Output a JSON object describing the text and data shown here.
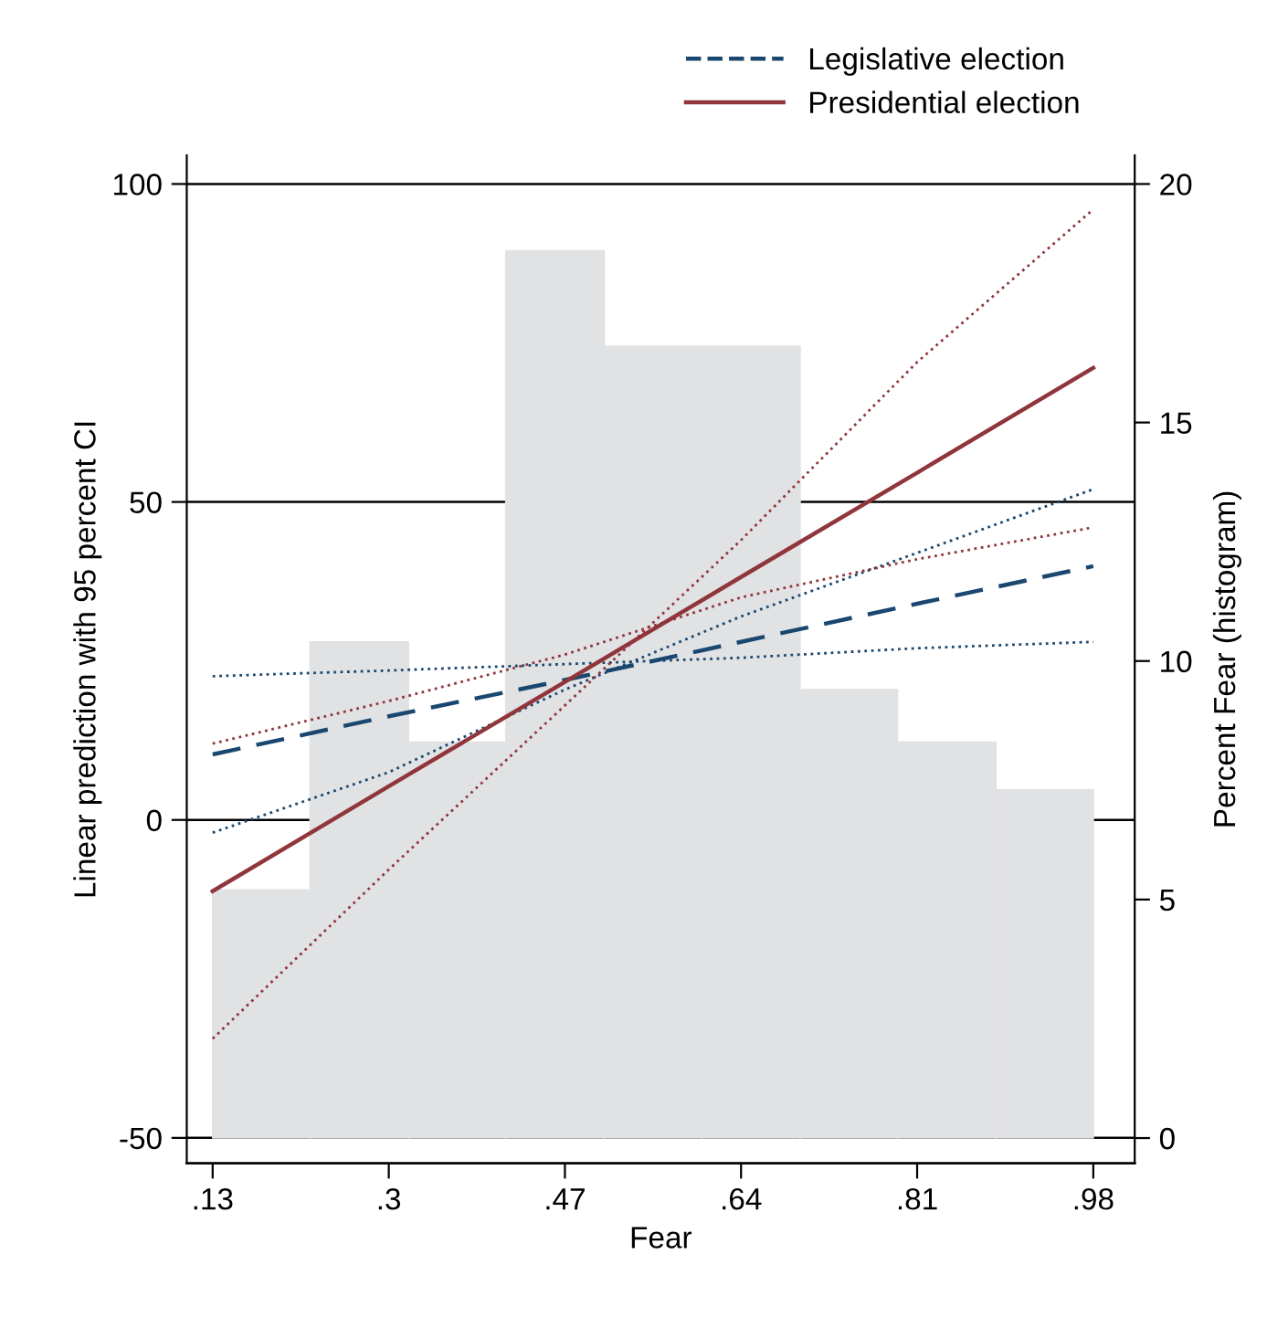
{
  "chart_data": {
    "type": "line",
    "xlabel": "Fear",
    "ylabel": "Linear prediction with 95 percent CI",
    "y2label": "Percent Fear (histogram)",
    "xlim": [
      0.105,
      1.02
    ],
    "xticks": [
      {
        "value": 0.13,
        "label": ".13"
      },
      {
        "value": 0.3,
        "label": ".3"
      },
      {
        "value": 0.47,
        "label": ".47"
      },
      {
        "value": 0.64,
        "label": ".64"
      },
      {
        "value": 0.81,
        "label": ".81"
      },
      {
        "value": 0.98,
        "label": ".98"
      }
    ],
    "ylim": [
      -54,
      104.5
    ],
    "yticks": [
      -50,
      0,
      50,
      100
    ],
    "y2lim": [
      -0.53,
      20.6
    ],
    "y2ticks": [
      0,
      5,
      10,
      15,
      20
    ],
    "grid": "y",
    "legend": "top right",
    "series": [
      {
        "type": "histogram",
        "axis": "y2",
        "color": "#e1e2e4",
        "bins": [
          0.13,
          0.224,
          0.319,
          0.413,
          0.508,
          0.602,
          0.697,
          0.791,
          0.886,
          0.98
        ],
        "values": [
          5.2,
          10.4,
          8.3,
          18.6,
          16.6,
          16.6,
          9.4,
          8.3,
          7.3
        ]
      },
      {
        "name": "Legislative election",
        "color": "#1a476f",
        "line_style": "dashed",
        "x": [
          0.13,
          0.3,
          0.47,
          0.64,
          0.81,
          0.98
        ],
        "values": [
          10.3,
          16.3,
          22.0,
          28.0,
          34.0,
          39.9
        ]
      },
      {
        "color": "#1a476f",
        "line_style": "dotted",
        "x": [
          0.13,
          0.3,
          0.47,
          0.64,
          0.81,
          0.98
        ],
        "values": [
          22.6,
          23.5,
          24.5,
          25.5,
          27.0,
          28.0
        ]
      },
      {
        "color": "#1a476f",
        "line_style": "dotted",
        "x": [
          0.13,
          0.3,
          0.47,
          0.64,
          0.81,
          0.98
        ],
        "values": [
          -2.0,
          7.5,
          20.5,
          32.0,
          42.0,
          52.0
        ]
      },
      {
        "name": "Presidential election",
        "color": "#90353b",
        "line_style": "solid",
        "x": [
          0.13,
          0.3,
          0.47,
          0.64,
          0.81,
          0.98
        ],
        "values": [
          -11.2,
          5.3,
          21.7,
          38.2,
          54.6,
          71.1
        ]
      },
      {
        "color": "#90353b",
        "line_style": "dotted",
        "x": [
          0.13,
          0.3,
          0.47,
          0.64,
          0.81,
          0.98
        ],
        "values": [
          12.0,
          18.7,
          26.0,
          35.0,
          41.0,
          46.0
        ]
      },
      {
        "color": "#90353b",
        "line_style": "dotted",
        "x": [
          0.13,
          0.3,
          0.47,
          0.64,
          0.81,
          0.98
        ],
        "values": [
          -34.4,
          -7.8,
          18.0,
          44.0,
          72.0,
          96.0
        ]
      }
    ]
  }
}
